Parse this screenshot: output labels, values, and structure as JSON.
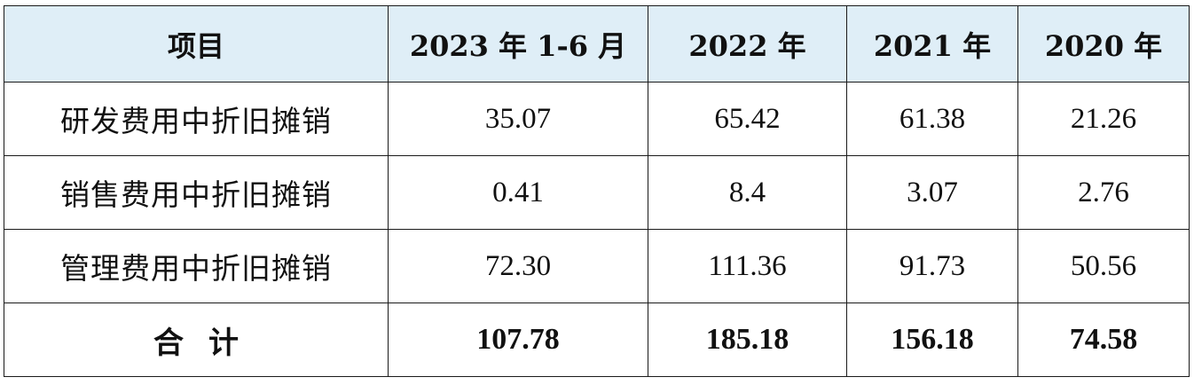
{
  "table": {
    "headers": [
      "项目",
      "2023 年 1-6 月",
      "2022 年",
      "2021 年",
      "2020 年"
    ],
    "rows": [
      {
        "label": "研发费用中折旧摊销",
        "values": [
          "35.07",
          "65.42",
          "61.38",
          "21.26"
        ]
      },
      {
        "label": "销售费用中折旧摊销",
        "values": [
          "0.41",
          "8.4",
          "3.07",
          "2.76"
        ]
      },
      {
        "label": "管理费用中折旧摊销",
        "values": [
          "72.30",
          "111.36",
          "91.73",
          "50.56"
        ]
      }
    ],
    "total": {
      "label": "合计",
      "values": [
        "107.78",
        "185.18",
        "156.18",
        "74.58"
      ]
    }
  }
}
